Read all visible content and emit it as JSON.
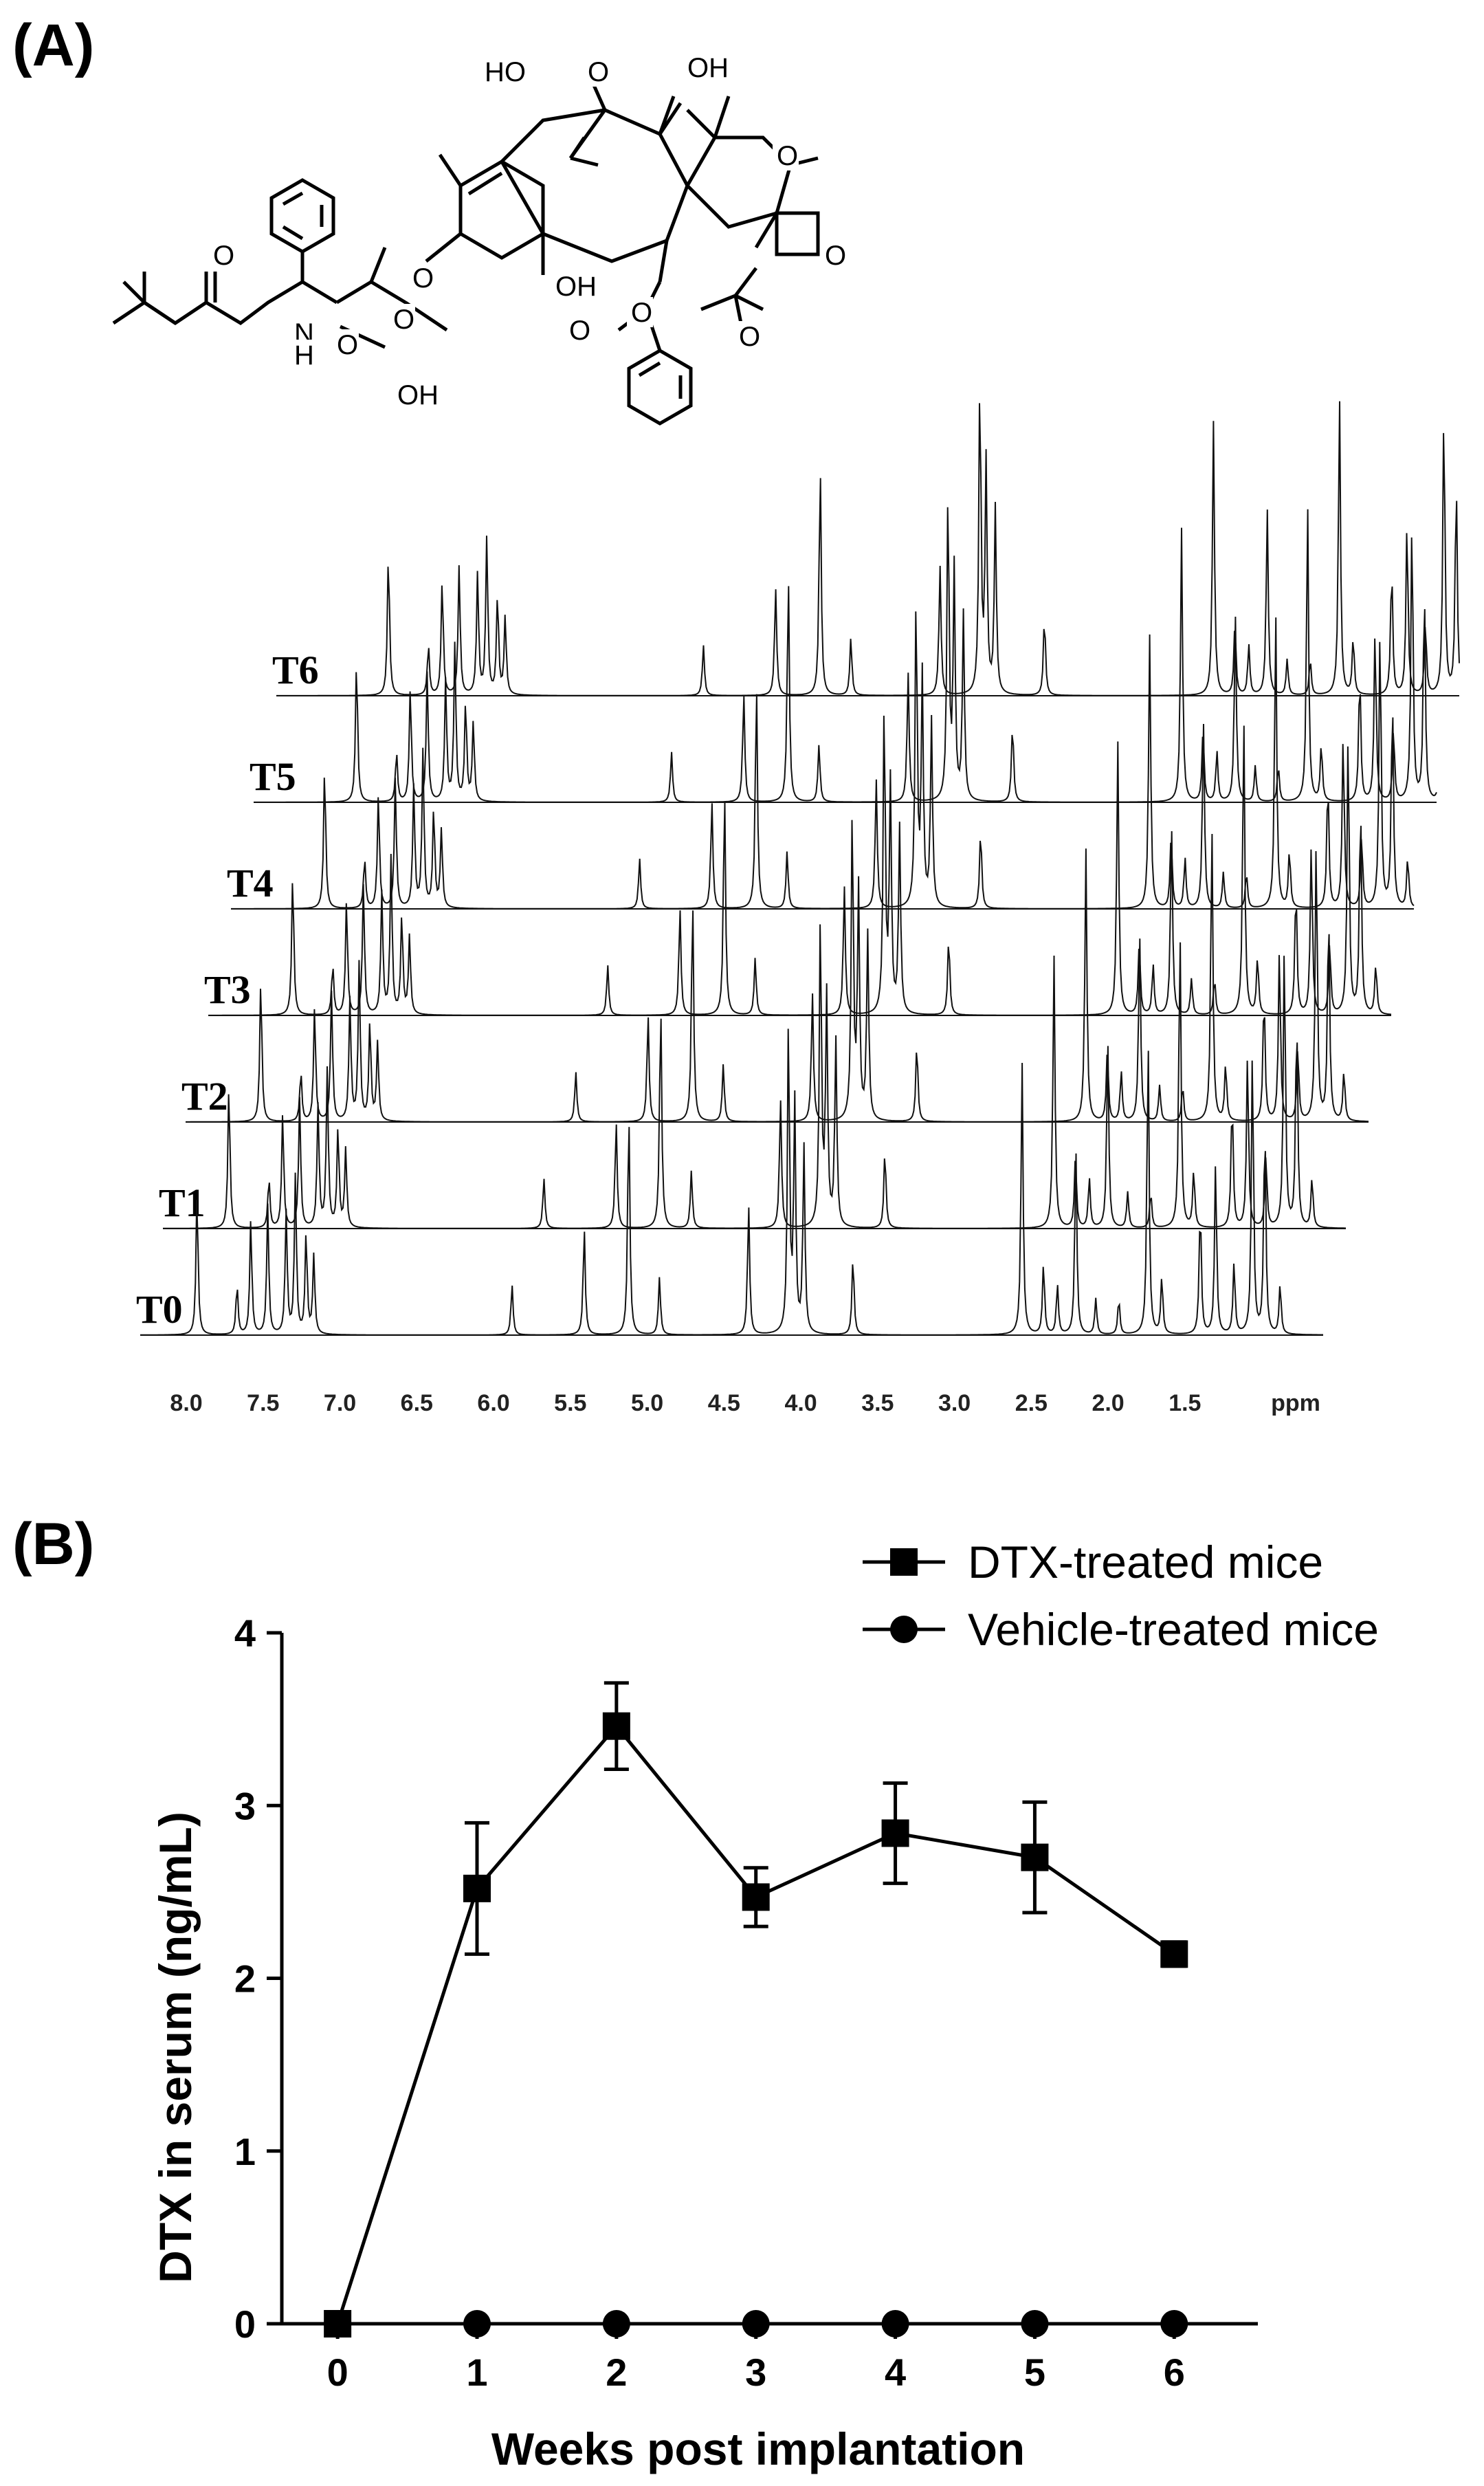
{
  "panel_a": {
    "label": "(A)",
    "ppm_unit": "ppm",
    "ppm_ticks": [
      "8.0",
      "7.5",
      "7.0",
      "6.5",
      "6.0",
      "5.5",
      "5.0",
      "4.5",
      "4.0",
      "3.5",
      "3.0",
      "2.5",
      "2.0",
      "1.5"
    ],
    "traces": [
      "T6",
      "T5",
      "T4",
      "T3",
      "T2",
      "T1",
      "T0"
    ],
    "structure_atoms": [
      "HO",
      "O",
      "OH",
      "O",
      "O",
      "O",
      "OH",
      "O",
      "O",
      "O",
      "O",
      "O",
      "N",
      "H",
      "OH",
      "O"
    ],
    "peaks": [
      {
        "ppm": 7.93,
        "h": 1.0
      },
      {
        "ppm": 7.67,
        "h": 0.35
      },
      {
        "ppm": 7.58,
        "h": 0.8
      },
      {
        "ppm": 7.47,
        "h": 0.9
      },
      {
        "ppm": 7.35,
        "h": 0.85
      },
      {
        "ppm": 7.29,
        "h": 1.1
      },
      {
        "ppm": 7.22,
        "h": 0.7
      },
      {
        "ppm": 7.17,
        "h": 0.55
      },
      {
        "ppm": 5.88,
        "h": 0.35
      },
      {
        "ppm": 5.41,
        "h": 0.75
      },
      {
        "ppm": 5.12,
        "h": 1.6
      },
      {
        "ppm": 4.92,
        "h": 0.4
      },
      {
        "ppm": 4.34,
        "h": 0.9
      },
      {
        "ppm": 4.08,
        "h": 2.2
      },
      {
        "ppm": 4.04,
        "h": 1.6
      },
      {
        "ppm": 3.98,
        "h": 1.3
      },
      {
        "ppm": 3.66,
        "h": 0.55
      },
      {
        "ppm": 2.56,
        "h": 1.9
      },
      {
        "ppm": 2.42,
        "h": 0.5
      },
      {
        "ppm": 2.33,
        "h": 0.35
      },
      {
        "ppm": 2.21,
        "h": 1.3
      },
      {
        "ppm": 2.08,
        "h": 0.25
      },
      {
        "ppm": 1.93,
        "h": 0.25
      },
      {
        "ppm": 1.74,
        "h": 2.1
      },
      {
        "ppm": 1.65,
        "h": 0.4
      },
      {
        "ppm": 1.4,
        "h": 0.9
      },
      {
        "ppm": 1.3,
        "h": 1.2
      },
      {
        "ppm": 1.18,
        "h": 0.5
      },
      {
        "ppm": 1.06,
        "h": 2.0
      },
      {
        "ppm": 0.98,
        "h": 1.5
      },
      {
        "ppm": 0.88,
        "h": 0.35
      }
    ]
  },
  "panel_b": {
    "label": "(B)"
  },
  "chart_data": {
    "type": "line",
    "title": "",
    "xlabel": "Weeks post implantation",
    "ylabel": "DTX in serum (ng/mL)",
    "x": [
      0,
      1,
      2,
      3,
      4,
      5,
      6
    ],
    "x_ticks": [
      "0",
      "1",
      "2",
      "3",
      "4",
      "5",
      "6"
    ],
    "y_ticks": [
      "0",
      "1",
      "2",
      "3",
      "4"
    ],
    "xlim": [
      -0.4,
      6.6
    ],
    "ylim": [
      0,
      4
    ],
    "grid": false,
    "legend_position": "top-right",
    "series": [
      {
        "name": "DTX-treated mice",
        "marker": "square",
        "values": [
          0,
          2.52,
          3.46,
          2.47,
          2.84,
          2.7,
          2.14
        ],
        "error": [
          0,
          0.38,
          0.25,
          0.17,
          0.29,
          0.32,
          0.07
        ]
      },
      {
        "name": "Vehicle-treated mice",
        "marker": "circle",
        "values": [
          0,
          0,
          0,
          0,
          0,
          0,
          0
        ],
        "error": [
          0,
          0,
          0,
          0,
          0,
          0,
          0
        ]
      }
    ]
  }
}
